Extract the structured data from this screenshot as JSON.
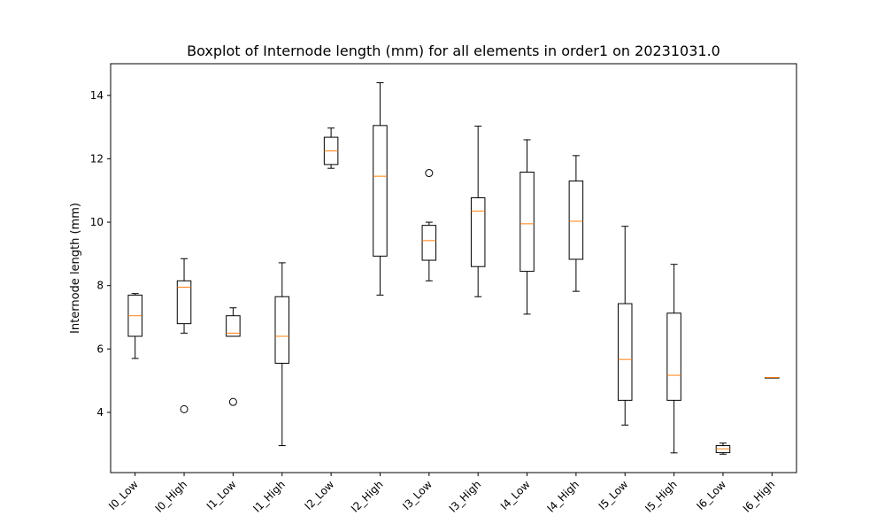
{
  "chart_data": {
    "type": "boxplot",
    "title": "Boxplot of Internode length (mm) for all elements in order1 on 20231031.0",
    "xlabel": "",
    "ylabel": "Internode length (mm)",
    "ylim": [
      2.1,
      15.0
    ],
    "yticks": [
      4,
      6,
      8,
      10,
      12,
      14
    ],
    "grid": false,
    "colors": {
      "box": "#000000",
      "median": "#ff7f0e",
      "outlier": "#000000"
    },
    "categories": [
      "I0_Low",
      "I0_High",
      "I1_Low",
      "I1_High",
      "I2_Low",
      "I2_High",
      "I3_Low",
      "I3_High",
      "I4_Low",
      "I4_High",
      "I5_Low",
      "I5_High",
      "I6_Low",
      "I6_High"
    ],
    "boxes": [
      {
        "label": "I0_Low",
        "whisker_low": 5.7,
        "q1": 6.4,
        "median": 7.05,
        "q3": 7.7,
        "whisker_high": 7.75,
        "outliers": []
      },
      {
        "label": "I0_High",
        "whisker_low": 6.5,
        "q1": 6.8,
        "median": 7.95,
        "q3": 8.15,
        "whisker_high": 8.85,
        "outliers": [
          4.1
        ]
      },
      {
        "label": "I1_Low",
        "whisker_low": 6.4,
        "q1": 6.4,
        "median": 6.5,
        "q3": 7.05,
        "whisker_high": 7.3,
        "outliers": [
          4.33
        ]
      },
      {
        "label": "I1_High",
        "whisker_low": 2.95,
        "q1": 5.55,
        "median": 6.4,
        "q3": 7.65,
        "whisker_high": 8.72,
        "outliers": []
      },
      {
        "label": "I2_Low",
        "whisker_low": 11.7,
        "q1": 11.82,
        "median": 12.25,
        "q3": 12.68,
        "whisker_high": 12.97,
        "outliers": []
      },
      {
        "label": "I2_High",
        "whisker_low": 7.7,
        "q1": 8.93,
        "median": 11.45,
        "q3": 13.05,
        "whisker_high": 14.4,
        "outliers": []
      },
      {
        "label": "I3_Low",
        "whisker_low": 8.15,
        "q1": 8.8,
        "median": 9.42,
        "q3": 9.9,
        "whisker_high": 10.0,
        "outliers": [
          11.55
        ]
      },
      {
        "label": "I3_High",
        "whisker_low": 7.65,
        "q1": 8.6,
        "median": 10.35,
        "q3": 10.77,
        "whisker_high": 13.03,
        "outliers": []
      },
      {
        "label": "I4_Low",
        "whisker_low": 7.1,
        "q1": 8.45,
        "median": 9.95,
        "q3": 11.58,
        "whisker_high": 12.6,
        "outliers": []
      },
      {
        "label": "I4_High",
        "whisker_low": 7.82,
        "q1": 8.83,
        "median": 10.03,
        "q3": 11.3,
        "whisker_high": 12.1,
        "outliers": []
      },
      {
        "label": "I5_Low",
        "whisker_low": 3.6,
        "q1": 4.38,
        "median": 5.67,
        "q3": 7.43,
        "whisker_high": 9.87,
        "outliers": []
      },
      {
        "label": "I5_High",
        "whisker_low": 2.72,
        "q1": 4.38,
        "median": 5.17,
        "q3": 7.13,
        "whisker_high": 8.67,
        "outliers": []
      },
      {
        "label": "I6_Low",
        "whisker_low": 2.68,
        "q1": 2.73,
        "median": 2.85,
        "q3": 2.95,
        "whisker_high": 3.03,
        "outliers": []
      },
      {
        "label": "I6_High",
        "whisker_low": 5.1,
        "q1": 5.1,
        "median": 5.1,
        "q3": 5.1,
        "whisker_high": 5.1,
        "outliers": []
      }
    ]
  }
}
